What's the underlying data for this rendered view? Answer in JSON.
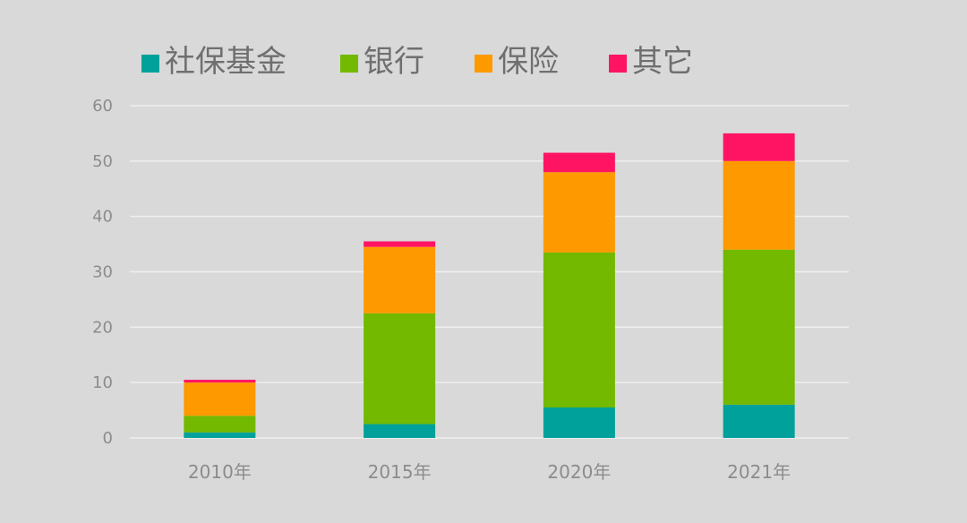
{
  "chart_data": {
    "type": "bar",
    "stacked": true,
    "categories": [
      "2010年",
      "2015年",
      "2020年",
      "2021年"
    ],
    "series": [
      {
        "name": "社保基金",
        "color": "#00a19a",
        "values": [
          1,
          2.5,
          5.5,
          6
        ]
      },
      {
        "name": "银行",
        "color": "#72b900",
        "values": [
          3,
          20,
          28,
          28
        ]
      },
      {
        "name": "保险",
        "color": "#ff9900",
        "values": [
          6,
          12,
          14.5,
          16
        ]
      },
      {
        "name": "其它",
        "color": "#ff1464",
        "values": [
          0.5,
          1,
          3.5,
          5
        ]
      }
    ],
    "yticks": [
      "0",
      "10",
      "20",
      "30",
      "40",
      "50",
      "60"
    ],
    "ylim": [
      0,
      60
    ],
    "grid": true,
    "legend_position": "top"
  }
}
